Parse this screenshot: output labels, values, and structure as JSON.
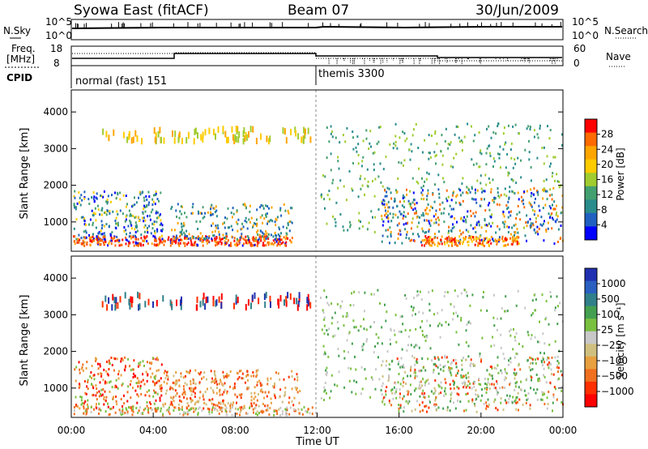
{
  "header": {
    "title": "Syowa East (fitACF)",
    "beam": "Beam 07",
    "date": "30/Jun/2009"
  },
  "sky_panel": {
    "left_label": "N.Sky",
    "right_label": "N.Search",
    "left_ticks": [
      "10^5",
      "10^0"
    ],
    "right_ticks": [
      "10^5",
      "10^0"
    ]
  },
  "freq_panel": {
    "left_label_1": "Freq.",
    "left_label_2": "[MHz]",
    "right_label": "Nave",
    "left_ticks": [
      "18",
      "8"
    ],
    "right_ticks": [
      "60",
      "0"
    ]
  },
  "cpid_panel": {
    "label": "CPID",
    "modes": [
      {
        "name": "normal (fast) 151",
        "start": "00:00"
      },
      {
        "name": "themis 3300",
        "start": "12:00"
      }
    ]
  },
  "chart_data": [
    {
      "type": "heatmap",
      "name": "power",
      "ylabel": "Slant Range [km]",
      "xlabel": "",
      "xlim": [
        "00:00",
        "00:00"
      ],
      "ylim": [
        200,
        4600
      ],
      "yticks": [
        1000,
        2000,
        3000,
        4000
      ],
      "colorbar": {
        "label": "Power [dB]",
        "ticks": [
          "28",
          "24",
          "20",
          "16",
          "12",
          "8",
          "4"
        ],
        "colors": [
          "#ff0000",
          "#ff6a00",
          "#ffa500",
          "#ffcc00",
          "#a0cc30",
          "#44a070",
          "#2a8c8c",
          "#2060c0",
          "#0000ff"
        ]
      }
    },
    {
      "type": "heatmap",
      "name": "velocity",
      "ylabel": "Slant Range [km]",
      "xlabel": "Time UT",
      "xlim": [
        "00:00",
        "00:00"
      ],
      "ylim": [
        200,
        4600
      ],
      "yticks": [
        1000,
        2000,
        3000,
        4000
      ],
      "xticks": [
        "00:00",
        "04:00",
        "08:00",
        "12:00",
        "16:00",
        "20:00",
        "00:00"
      ],
      "colorbar": {
        "label": "Velocity [m s⁻¹]",
        "ticks": [
          "1000",
          "500",
          "100",
          "25",
          "−25",
          "−100",
          "−500",
          "−1000"
        ],
        "colors": [
          "#2030b0",
          "#2a60c0",
          "#30808a",
          "#44a050",
          "#7ac040",
          "#c8c8c8",
          "#d0c080",
          "#e8a040",
          "#f07020",
          "#ff3000",
          "#ff0000"
        ]
      }
    }
  ]
}
